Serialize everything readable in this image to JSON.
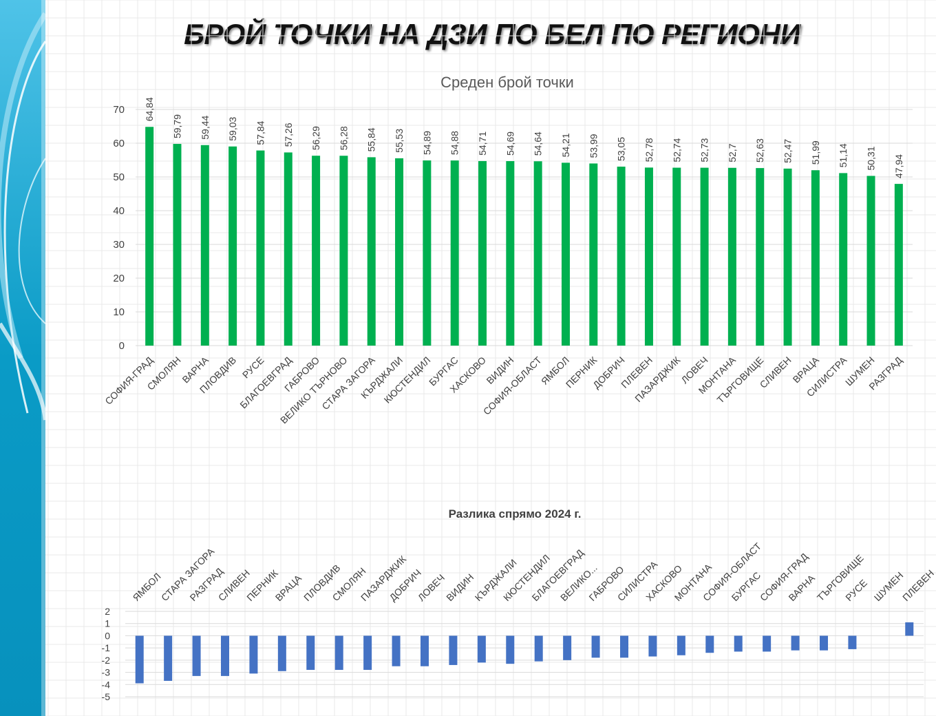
{
  "page": {
    "title": "БРОЙ ТОЧКИ НА ДЗИ ПО БЕЛ ПО РЕГИОНИ"
  },
  "colors": {
    "bar_green": "#00b050",
    "bar_blue": "#4472c4",
    "sidebar": "#0aa1c8"
  },
  "chart_data": [
    {
      "type": "bar",
      "title": "Среден брой точки",
      "xlabel": "",
      "ylabel": "",
      "ylim": [
        0,
        70
      ],
      "yticks": [
        0,
        10,
        20,
        30,
        40,
        50,
        60,
        70
      ],
      "grid": true,
      "legend": "none",
      "categories": [
        "СОФИЯ-ГРАД",
        "СМОЛЯН",
        "ВАРНА",
        "ПЛОВДИВ",
        "РУСЕ",
        "БЛАГОЕВГРАД",
        "ГАБРОВО",
        "ВЕЛИКО ТЪРНОВО",
        "СТАРА ЗАГОРА",
        "КЪРДЖАЛИ",
        "КЮСТЕНДИЛ",
        "БУРГАС",
        "ХАСКОВО",
        "ВИДИН",
        "СОФИЯ-ОБЛАСТ",
        "ЯМБОЛ",
        "ПЕРНИК",
        "ДОБРИЧ",
        "ПЛЕВЕН",
        "ПАЗАРДЖИК",
        "ЛОВЕЧ",
        "МОНТАНА",
        "ТЪРГОВИЩЕ",
        "СЛИВЕН",
        "ВРАЦА",
        "СИЛИСТРА",
        "ШУМЕН",
        "РАЗГРАД"
      ],
      "values": [
        64.84,
        59.79,
        59.44,
        59.03,
        57.84,
        57.26,
        56.29,
        56.28,
        55.84,
        55.53,
        54.89,
        54.88,
        54.71,
        54.69,
        54.64,
        54.21,
        53.99,
        53.05,
        52.78,
        52.74,
        52.73,
        52.7,
        52.63,
        52.47,
        51.99,
        51.14,
        50.31,
        47.94
      ],
      "data_labels": [
        "64,84",
        "59,79",
        "59,44",
        "59,03",
        "57,84",
        "57,26",
        "56,29",
        "56,28",
        "55,84",
        "55,53",
        "54,89",
        "54,88",
        "54,71",
        "54,69",
        "54,64",
        "54,21",
        "53,99",
        "53,05",
        "52,78",
        "52,74",
        "52,73",
        "52,7",
        "52,63",
        "52,47",
        "51,99",
        "51,14",
        "50,31",
        "47,94"
      ]
    },
    {
      "type": "bar",
      "title": "Разлика спрямо 2024 г.",
      "xlabel": "",
      "ylabel": "",
      "ylim": [
        -5,
        2
      ],
      "yticks": [
        2,
        1,
        0,
        -1,
        -2,
        -3,
        -4,
        -5
      ],
      "grid": true,
      "legend": "none",
      "categories": [
        "ЯМБОЛ",
        "СТАРА ЗАГОРА",
        "РАЗГРАД",
        "СЛИВЕН",
        "ПЕРНИК",
        "ВРАЦА",
        "ПЛОВДИВ",
        "СМОЛЯН",
        "ПАЗАРДЖИК",
        "ДОБРИЧ",
        "ЛОВЕЧ",
        "ВИДИН",
        "КЪРДЖАЛИ",
        "КЮСТЕНДИЛ",
        "БЛАГОЕВГРАД",
        "ВЕЛИКО...",
        "ГАБРОВО",
        "СИЛИСТРА",
        "ХАСКОВО",
        "МОНТАНА",
        "СОФИЯ-ОБЛАСТ",
        "БУРГАС",
        "СОФИЯ-ГРАД",
        "ВАРНА",
        "ТЪРГОВИЩЕ",
        "РУСЕ",
        "ШУМЕН",
        "ПЛЕВЕН"
      ],
      "values": [
        -3.9,
        -3.7,
        -3.3,
        -3.3,
        -3.1,
        -2.9,
        -2.8,
        -2.8,
        -2.8,
        -2.5,
        -2.5,
        -2.4,
        -2.2,
        -2.3,
        -2.1,
        -2.0,
        -1.8,
        -1.8,
        -1.7,
        -1.6,
        -1.4,
        -1.3,
        -1.3,
        -1.2,
        -1.2,
        -1.1,
        0.0,
        1.1
      ]
    }
  ]
}
